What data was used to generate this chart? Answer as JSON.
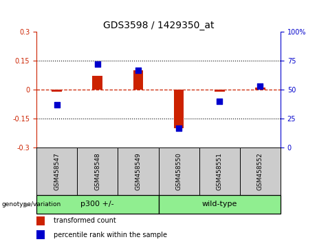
{
  "title": "GDS3598 / 1429350_at",
  "samples": [
    "GSM458547",
    "GSM458548",
    "GSM458549",
    "GSM458550",
    "GSM458551",
    "GSM458552"
  ],
  "red_values": [
    -0.01,
    0.07,
    0.1,
    -0.2,
    -0.01,
    0.01
  ],
  "blue_values": [
    37,
    72,
    67,
    17,
    40,
    53
  ],
  "ylim_left": [
    -0.3,
    0.3
  ],
  "ylim_right": [
    0,
    100
  ],
  "yticks_left": [
    -0.3,
    -0.15,
    0.0,
    0.15,
    0.3
  ],
  "yticks_right": [
    0,
    25,
    50,
    75,
    100
  ],
  "ytick_labels_left": [
    "-0.3",
    "-0.15",
    "0",
    "0.15",
    "0.3"
  ],
  "ytick_labels_right": [
    "0",
    "25",
    "50",
    "75",
    "100%"
  ],
  "dotted_lines": [
    -0.15,
    0.15
  ],
  "group_labels": [
    "p300 +/-",
    "wild-type"
  ],
  "group_ranges": [
    [
      0,
      3
    ],
    [
      3,
      6
    ]
  ],
  "bar_color_red": "#CC2200",
  "bar_color_blue": "#0000CC",
  "sample_box_color": "#CCCCCC",
  "legend_label_red": "transformed count",
  "legend_label_blue": "percentile rank within the sample",
  "genotype_label": "genotype/variation",
  "left_axis_color": "#CC2200",
  "right_axis_color": "#0000CC",
  "green_color": "#90EE90"
}
